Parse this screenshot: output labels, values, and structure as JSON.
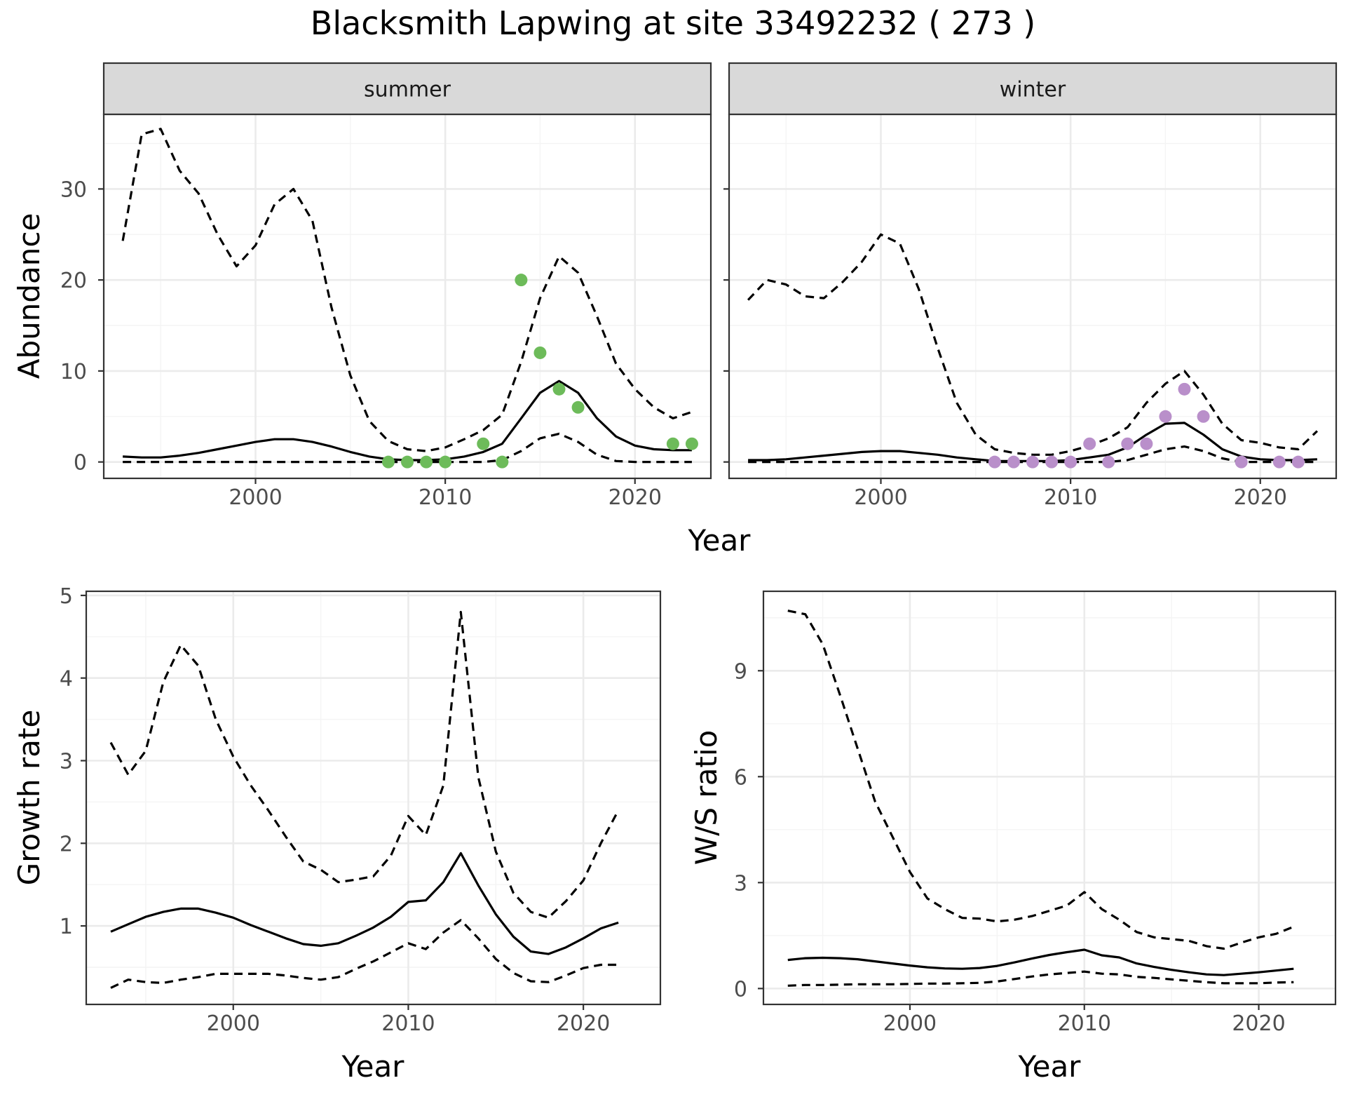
{
  "title": "Blacksmith Lapwing at site 33492232 ( 273 )",
  "colors": {
    "summer_points": "#6dbb5a",
    "winter_points": "#b98fca",
    "lines": "#000000",
    "grid_major": "#ebebeb",
    "grid_minor": "#f4f4f4",
    "strip_bg": "#d9d9d9",
    "strip_border": "#333333"
  },
  "chart_data": [
    {
      "type": "line",
      "panel": "summer",
      "strip_label": "summer",
      "ylabel": "Abundance",
      "xlabel": "Year",
      "xlim": [
        1992,
        2024
      ],
      "ylim": [
        -1.8,
        38.2
      ],
      "x_ticks": [
        2000,
        2010,
        2020
      ],
      "y_ticks": [
        0,
        10,
        20,
        30
      ],
      "grid": true,
      "x": [
        1993,
        1994,
        1995,
        1996,
        1997,
        1998,
        1999,
        2000,
        2001,
        2002,
        2003,
        2004,
        2005,
        2006,
        2007,
        2008,
        2009,
        2010,
        2011,
        2012,
        2013,
        2014,
        2015,
        2016,
        2017,
        2018,
        2019,
        2020,
        2021,
        2022,
        2023
      ],
      "series": [
        {
          "role": "estimate",
          "style": "solid",
          "values": [
            0.6,
            0.5,
            0.5,
            0.7,
            1.0,
            1.4,
            1.8,
            2.2,
            2.5,
            2.5,
            2.2,
            1.7,
            1.1,
            0.6,
            0.3,
            0.2,
            0.2,
            0.3,
            0.6,
            1.1,
            2.0,
            4.8,
            7.6,
            8.9,
            7.6,
            4.8,
            2.8,
            1.8,
            1.4,
            1.3,
            1.3
          ]
        },
        {
          "role": "upper",
          "style": "dashed",
          "values": [
            24.3,
            36.0,
            36.6,
            32.0,
            29.5,
            25.0,
            21.5,
            23.8,
            28.3,
            30.0,
            26.5,
            17.0,
            9.5,
            4.5,
            2.3,
            1.4,
            1.2,
            1.6,
            2.5,
            3.5,
            5.2,
            11.0,
            18.0,
            22.6,
            20.8,
            16.0,
            10.8,
            8.0,
            6.0,
            4.8,
            5.5
          ]
        },
        {
          "role": "lower",
          "style": "dashed",
          "values": [
            0,
            0,
            0,
            0,
            0,
            0,
            0,
            0,
            0,
            0,
            0,
            0,
            0,
            0,
            0,
            0,
            0,
            0,
            0,
            0,
            0.2,
            1.2,
            2.6,
            3.1,
            2.2,
            0.8,
            0.1,
            0,
            0,
            0,
            0
          ]
        }
      ],
      "points": [
        {
          "x": 2007,
          "y": 0
        },
        {
          "x": 2008,
          "y": 0
        },
        {
          "x": 2009,
          "y": 0
        },
        {
          "x": 2010,
          "y": 0
        },
        {
          "x": 2012,
          "y": 2
        },
        {
          "x": 2013,
          "y": 0
        },
        {
          "x": 2014,
          "y": 20
        },
        {
          "x": 2015,
          "y": 12
        },
        {
          "x": 2016,
          "y": 8
        },
        {
          "x": 2017,
          "y": 6
        },
        {
          "x": 2022,
          "y": 2
        },
        {
          "x": 2023,
          "y": 2
        }
      ]
    },
    {
      "type": "line",
      "panel": "winter",
      "strip_label": "winter",
      "ylabel": "",
      "xlabel": "Year",
      "xlim": [
        1992,
        2024
      ],
      "ylim": [
        -1.8,
        38.2
      ],
      "x_ticks": [
        2000,
        2010,
        2020
      ],
      "y_ticks": [
        0,
        10,
        20,
        30
      ],
      "grid": true,
      "x": [
        1993,
        1994,
        1995,
        1996,
        1997,
        1998,
        1999,
        2000,
        2001,
        2002,
        2003,
        2004,
        2005,
        2006,
        2007,
        2008,
        2009,
        2010,
        2011,
        2012,
        2013,
        2014,
        2015,
        2016,
        2017,
        2018,
        2019,
        2020,
        2021,
        2022,
        2023
      ],
      "series": [
        {
          "role": "estimate",
          "style": "solid",
          "values": [
            0.2,
            0.2,
            0.3,
            0.5,
            0.7,
            0.9,
            1.1,
            1.2,
            1.2,
            1.0,
            0.8,
            0.5,
            0.3,
            0.1,
            0.1,
            0.1,
            0.1,
            0.2,
            0.5,
            0.8,
            1.6,
            3.0,
            4.2,
            4.3,
            3.0,
            1.4,
            0.6,
            0.3,
            0.2,
            0.2,
            0.3
          ]
        },
        {
          "role": "upper",
          "style": "dashed",
          "values": [
            17.8,
            20.0,
            19.5,
            18.2,
            18.0,
            19.8,
            22.0,
            25.0,
            24.0,
            19.0,
            12.5,
            6.5,
            3.0,
            1.4,
            1.0,
            0.8,
            0.8,
            1.2,
            1.8,
            2.6,
            3.8,
            6.5,
            8.6,
            10.0,
            7.4,
            4.2,
            2.4,
            2.1,
            1.6,
            1.4,
            3.4
          ]
        },
        {
          "role": "lower",
          "style": "dashed",
          "values": [
            0,
            0,
            0,
            0,
            0,
            0,
            0,
            0,
            0,
            0,
            0,
            0,
            0,
            0,
            0,
            0,
            0,
            0,
            0,
            0,
            0.2,
            0.8,
            1.4,
            1.7,
            1.2,
            0.4,
            0,
            0,
            0,
            0,
            0
          ]
        }
      ],
      "points": [
        {
          "x": 2006,
          "y": 0
        },
        {
          "x": 2007,
          "y": 0
        },
        {
          "x": 2008,
          "y": 0
        },
        {
          "x": 2009,
          "y": 0
        },
        {
          "x": 2010,
          "y": 0
        },
        {
          "x": 2011,
          "y": 2
        },
        {
          "x": 2012,
          "y": 0
        },
        {
          "x": 2013,
          "y": 2
        },
        {
          "x": 2014,
          "y": 2
        },
        {
          "x": 2015,
          "y": 5
        },
        {
          "x": 2016,
          "y": 8
        },
        {
          "x": 2017,
          "y": 5
        },
        {
          "x": 2019,
          "y": 0
        },
        {
          "x": 2021,
          "y": 0
        },
        {
          "x": 2022,
          "y": 0
        }
      ]
    },
    {
      "type": "line",
      "panel": "growth",
      "ylabel": "Growth rate",
      "xlabel": "Year",
      "xlim": [
        1991.6,
        2024.4
      ],
      "ylim": [
        0.05,
        5.05
      ],
      "x_ticks": [
        2000,
        2010,
        2020
      ],
      "y_ticks": [
        1,
        2,
        3,
        4,
        5
      ],
      "grid": true,
      "x": [
        1993,
        1994,
        1995,
        1996,
        1997,
        1998,
        1999,
        2000,
        2001,
        2002,
        2003,
        2004,
        2005,
        2006,
        2007,
        2008,
        2009,
        2010,
        2011,
        2012,
        2013,
        2014,
        2015,
        2016,
        2017,
        2018,
        2019,
        2020,
        2021,
        2022
      ],
      "series": [
        {
          "role": "estimate",
          "style": "solid",
          "values": [
            0.93,
            1.02,
            1.11,
            1.17,
            1.21,
            1.21,
            1.16,
            1.1,
            1.01,
            0.93,
            0.85,
            0.78,
            0.76,
            0.79,
            0.88,
            0.98,
            1.11,
            1.29,
            1.31,
            1.53,
            1.88,
            1.49,
            1.14,
            0.87,
            0.69,
            0.66,
            0.74,
            0.85,
            0.97,
            1.04
          ]
        },
        {
          "role": "upper",
          "style": "dashed",
          "values": [
            3.22,
            2.83,
            3.12,
            3.95,
            4.4,
            4.15,
            3.5,
            3.05,
            2.7,
            2.4,
            2.08,
            1.78,
            1.68,
            1.53,
            1.56,
            1.6,
            1.85,
            2.33,
            2.1,
            2.7,
            4.8,
            2.8,
            1.9,
            1.4,
            1.17,
            1.1,
            1.3,
            1.55,
            2.0,
            2.4
          ]
        },
        {
          "role": "lower",
          "style": "dashed",
          "values": [
            0.25,
            0.35,
            0.32,
            0.31,
            0.35,
            0.38,
            0.42,
            0.42,
            0.42,
            0.42,
            0.4,
            0.37,
            0.35,
            0.38,
            0.48,
            0.57,
            0.68,
            0.79,
            0.72,
            0.92,
            1.07,
            0.85,
            0.6,
            0.43,
            0.33,
            0.32,
            0.4,
            0.49,
            0.53,
            0.53
          ]
        }
      ],
      "points": []
    },
    {
      "type": "line",
      "panel": "ws_ratio",
      "ylabel": "W/S ratio",
      "xlabel": "Year",
      "xlim": [
        1991.6,
        2024.4
      ],
      "ylim": [
        -0.45,
        11.25
      ],
      "x_ticks": [
        2000,
        2010,
        2020
      ],
      "y_ticks": [
        0,
        3,
        6,
        9
      ],
      "grid": true,
      "x": [
        1993,
        1994,
        1995,
        1996,
        1997,
        1998,
        1999,
        2000,
        2001,
        2002,
        2003,
        2004,
        2005,
        2006,
        2007,
        2008,
        2009,
        2010,
        2011,
        2012,
        2013,
        2014,
        2015,
        2016,
        2017,
        2018,
        2019,
        2020,
        2021,
        2022
      ],
      "series": [
        {
          "role": "estimate",
          "style": "solid",
          "values": [
            0.81,
            0.86,
            0.87,
            0.86,
            0.83,
            0.77,
            0.71,
            0.65,
            0.6,
            0.57,
            0.56,
            0.58,
            0.64,
            0.74,
            0.85,
            0.95,
            1.03,
            1.1,
            0.94,
            0.88,
            0.71,
            0.61,
            0.53,
            0.46,
            0.4,
            0.38,
            0.42,
            0.46,
            0.51,
            0.56
          ]
        },
        {
          "role": "upper",
          "style": "dashed",
          "values": [
            10.7,
            10.6,
            9.75,
            8.3,
            6.8,
            5.3,
            4.3,
            3.3,
            2.55,
            2.25,
            2.0,
            1.98,
            1.9,
            1.95,
            2.05,
            2.2,
            2.35,
            2.73,
            2.25,
            1.95,
            1.6,
            1.45,
            1.4,
            1.35,
            1.2,
            1.13,
            1.3,
            1.45,
            1.55,
            1.75
          ]
        },
        {
          "role": "lower",
          "style": "dashed",
          "values": [
            0.08,
            0.1,
            0.1,
            0.11,
            0.12,
            0.12,
            0.12,
            0.13,
            0.14,
            0.14,
            0.15,
            0.16,
            0.2,
            0.27,
            0.34,
            0.4,
            0.44,
            0.48,
            0.42,
            0.4,
            0.33,
            0.3,
            0.26,
            0.22,
            0.18,
            0.15,
            0.15,
            0.15,
            0.17,
            0.18
          ]
        }
      ],
      "points": []
    }
  ]
}
